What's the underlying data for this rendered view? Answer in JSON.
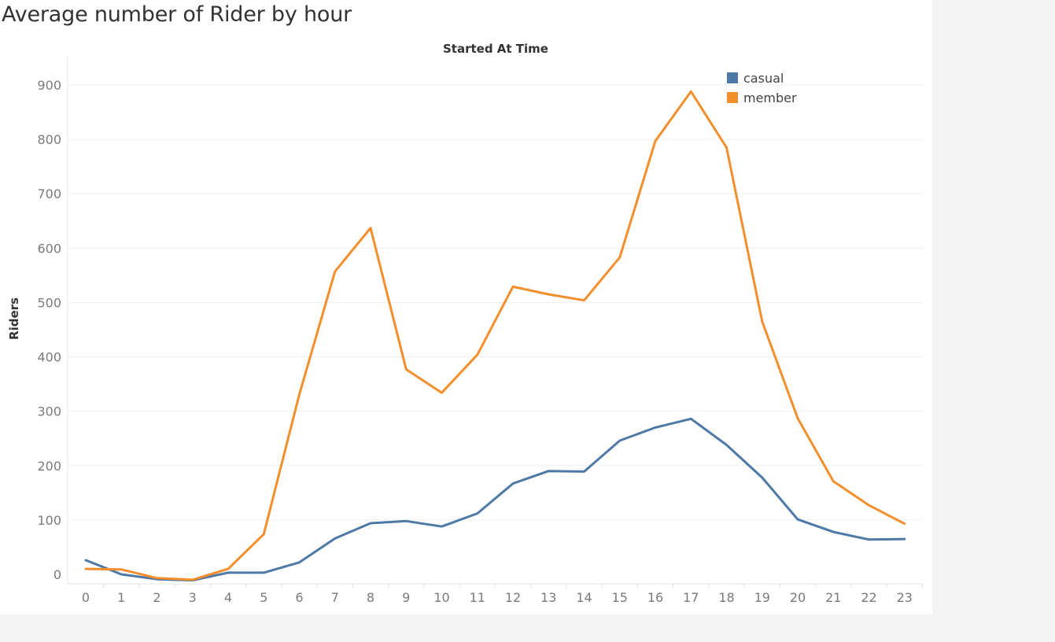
{
  "chart_data": {
    "type": "line",
    "title": "Average number of Rider by hour",
    "xlabel": "Started At Time",
    "ylabel": "Riders",
    "categories": [
      "0",
      "1",
      "2",
      "3",
      "4",
      "5",
      "6",
      "7",
      "8",
      "9",
      "10",
      "11",
      "12",
      "13",
      "14",
      "15",
      "16",
      "17",
      "18",
      "19",
      "20",
      "21",
      "22",
      "23"
    ],
    "y_ticks": [
      0,
      100,
      200,
      300,
      400,
      500,
      600,
      700,
      800,
      900
    ],
    "ylim": [
      -14,
      940
    ],
    "grid": "horizontal",
    "legend_position": "top-right",
    "series": [
      {
        "name": "casual",
        "color": "#4e79a7",
        "values": [
          26,
          0,
          -9,
          -11,
          3,
          3,
          22,
          66,
          94,
          98,
          88,
          112,
          167,
          190,
          189,
          246,
          270,
          286,
          238,
          178,
          101,
          78,
          64,
          65
        ]
      },
      {
        "name": "member",
        "color": "#f28e2b",
        "values": [
          10,
          9,
          -7,
          -10,
          10,
          74,
          331,
          557,
          637,
          377,
          334,
          404,
          529,
          515,
          504,
          583,
          797,
          888,
          785,
          465,
          287,
          171,
          127,
          93
        ]
      }
    ]
  }
}
